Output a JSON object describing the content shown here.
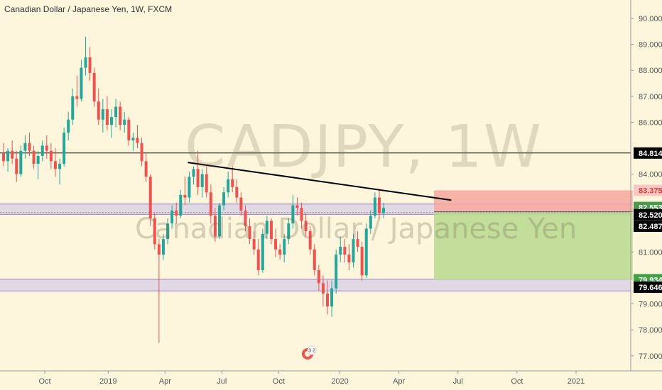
{
  "header": {
    "title": "Canadian Dollar / Japanese Yen, 1W, FXCM"
  },
  "watermark": {
    "symbol": "CADJPY, 1W",
    "name": "Canadian Dollar / Japanese Yen"
  },
  "event_badge": {
    "count": "3 2"
  },
  "colors": {
    "background": "#fdf6dc",
    "up": "#26a69a",
    "down": "#ef5350",
    "zone_fill": "#d6cfe8",
    "zone_line": "#9b7fc4",
    "target": "#b9d98e",
    "stop": "#f7a7a0",
    "trendline": "#000000"
  },
  "chart_data": {
    "type": "candlestick",
    "title": "Canadian Dollar / Japanese Yen, 1W, FXCM",
    "y_axis": {
      "range": [
        76.5,
        90.5
      ],
      "ticks": [
        "90.000",
        "89.000",
        "88.000",
        "87.000",
        "86.000",
        "84.000",
        "81.000",
        "79.000",
        "78.000",
        "77.000"
      ],
      "position": "right"
    },
    "x_axis": {
      "ticks": [
        "Oct",
        "2019",
        "Apr",
        "Jul",
        "Oct",
        "2020",
        "Apr",
        "Jul",
        "Oct",
        "2021"
      ]
    },
    "candles_weekly": [
      [
        84.8,
        85.2,
        84.3,
        84.5
      ],
      [
        84.5,
        85.0,
        84.1,
        84.9
      ],
      [
        84.9,
        85.3,
        84.4,
        84.6
      ],
      [
        84.6,
        84.9,
        83.7,
        84.0
      ],
      [
        84.0,
        85.1,
        83.9,
        84.9
      ],
      [
        84.9,
        85.5,
        84.6,
        85.2
      ],
      [
        85.2,
        85.6,
        84.7,
        84.9
      ],
      [
        84.9,
        85.1,
        84.2,
        84.4
      ],
      [
        84.4,
        84.9,
        83.8,
        84.7
      ],
      [
        84.7,
        85.3,
        84.5,
        85.1
      ],
      [
        85.1,
        85.5,
        84.6,
        84.9
      ],
      [
        84.9,
        85.2,
        84.2,
        84.5
      ],
      [
        84.5,
        85.0,
        83.9,
        84.2
      ],
      [
        84.2,
        84.6,
        83.6,
        84.4
      ],
      [
        84.4,
        85.8,
        84.3,
        85.6
      ],
      [
        85.6,
        86.4,
        85.3,
        86.1
      ],
      [
        86.1,
        87.3,
        85.9,
        87.0
      ],
      [
        87.0,
        87.8,
        86.6,
        86.9
      ],
      [
        86.9,
        88.4,
        86.8,
        88.1
      ],
      [
        88.1,
        89.3,
        87.8,
        88.5
      ],
      [
        88.5,
        88.9,
        87.6,
        87.9
      ],
      [
        87.9,
        88.1,
        86.6,
        86.8
      ],
      [
        86.8,
        87.3,
        85.9,
        86.1
      ],
      [
        86.1,
        86.9,
        85.6,
        86.5
      ],
      [
        86.5,
        87.0,
        85.7,
        85.9
      ],
      [
        85.9,
        86.5,
        85.4,
        86.2
      ],
      [
        86.2,
        86.9,
        85.8,
        86.6
      ],
      [
        86.6,
        86.8,
        85.7,
        85.9
      ],
      [
        85.9,
        86.4,
        85.6,
        86.1
      ],
      [
        86.1,
        86.2,
        85.1,
        85.3
      ],
      [
        85.3,
        85.6,
        84.9,
        85.4
      ],
      [
        85.4,
        85.9,
        85.0,
        85.2
      ],
      [
        85.2,
        85.4,
        84.3,
        84.5
      ],
      [
        84.5,
        84.8,
        83.7,
        83.9
      ],
      [
        83.9,
        84.0,
        82.0,
        82.3
      ],
      [
        82.3,
        82.5,
        81.1,
        81.3
      ],
      [
        81.3,
        81.5,
        77.5,
        80.9
      ],
      [
        80.9,
        81.7,
        80.7,
        81.5
      ],
      [
        81.5,
        82.3,
        81.3,
        82.1
      ],
      [
        82.1,
        82.8,
        81.9,
        82.6
      ],
      [
        82.6,
        82.9,
        82.1,
        82.4
      ],
      [
        82.4,
        83.4,
        82.3,
        83.2
      ],
      [
        83.2,
        83.9,
        82.8,
        83.1
      ],
      [
        83.1,
        84.1,
        82.9,
        83.9
      ],
      [
        83.9,
        84.3,
        83.6,
        84.2
      ],
      [
        84.2,
        84.9,
        83.2,
        83.5
      ],
      [
        83.5,
        84.2,
        83.1,
        84.0
      ],
      [
        84.0,
        84.3,
        83.1,
        83.3
      ],
      [
        83.3,
        83.6,
        82.1,
        82.4
      ],
      [
        82.4,
        82.7,
        81.4,
        81.6
      ],
      [
        81.6,
        82.9,
        81.5,
        82.8
      ],
      [
        82.8,
        83.5,
        82.6,
        83.3
      ],
      [
        83.3,
        84.1,
        83.1,
        83.8
      ],
      [
        83.8,
        84.3,
        83.3,
        83.5
      ],
      [
        83.5,
        83.8,
        82.9,
        83.1
      ],
      [
        83.1,
        83.3,
        82.4,
        82.6
      ],
      [
        82.6,
        82.8,
        81.8,
        82.0
      ],
      [
        82.0,
        82.3,
        81.3,
        81.5
      ],
      [
        81.5,
        81.8,
        80.9,
        81.1
      ],
      [
        81.1,
        81.5,
        80.1,
        80.3
      ],
      [
        80.3,
        81.9,
        80.2,
        81.7
      ],
      [
        81.7,
        82.4,
        81.5,
        82.2
      ],
      [
        82.2,
        82.3,
        81.3,
        81.5
      ],
      [
        81.5,
        81.9,
        80.8,
        81.1
      ],
      [
        81.1,
        81.3,
        80.7,
        80.9
      ],
      [
        80.9,
        81.7,
        80.6,
        81.5
      ],
      [
        81.5,
        82.3,
        81.3,
        82.1
      ],
      [
        82.1,
        83.2,
        81.9,
        82.8
      ],
      [
        82.8,
        83.1,
        82.4,
        82.7
      ],
      [
        82.7,
        82.9,
        81.9,
        82.2
      ],
      [
        82.2,
        82.5,
        81.6,
        81.8
      ],
      [
        81.8,
        82.0,
        80.9,
        81.1
      ],
      [
        81.1,
        81.3,
        80.1,
        80.3
      ],
      [
        80.3,
        80.5,
        79.5,
        79.8
      ],
      [
        79.8,
        80.1,
        78.9,
        79.4
      ],
      [
        79.4,
        79.9,
        78.6,
        78.9
      ],
      [
        78.9,
        79.9,
        78.5,
        79.6
      ],
      [
        79.6,
        81.1,
        79.4,
        80.9
      ],
      [
        80.9,
        81.6,
        80.6,
        81.2
      ],
      [
        81.2,
        81.5,
        80.6,
        80.9
      ],
      [
        80.9,
        81.3,
        80.3,
        80.6
      ],
      [
        80.6,
        81.7,
        80.4,
        81.5
      ],
      [
        81.5,
        81.8,
        81.0,
        81.2
      ],
      [
        81.2,
        81.4,
        79.9,
        80.1
      ],
      [
        80.1,
        82.1,
        80.0,
        81.9
      ],
      [
        81.9,
        82.6,
        81.7,
        82.4
      ],
      [
        82.4,
        83.3,
        82.3,
        83.1
      ],
      [
        83.1,
        83.4,
        82.3,
        82.5
      ],
      [
        82.5,
        82.9,
        82.3,
        82.7
      ]
    ],
    "horizontal_lines": [
      {
        "price": 84.814,
        "label": "84.814"
      }
    ],
    "zones": [
      {
        "from": 82.45,
        "to": 82.85
      },
      {
        "from": 79.5,
        "to": 79.95
      }
    ],
    "trendline": {
      "from": {
        "week": 43,
        "price": 84.45
      },
      "to": {
        "week": 104,
        "price": 83.0
      }
    },
    "position": {
      "entry": 82.553,
      "stop": 83.375,
      "target": 79.934,
      "start_week": 100,
      "end_week": 146
    },
    "price_labels": [
      {
        "value": "84.814",
        "price": 84.814,
        "bg": "#000000",
        "fg": "#ffffff"
      },
      {
        "value": "83.375",
        "price": 83.375,
        "bg": "#f7c9c4",
        "fg": "#e53935"
      },
      {
        "value": "82.553",
        "price": 82.553,
        "bg": "#4c9a4d",
        "fg": "#ffffff"
      },
      {
        "value": "82.520",
        "price": 82.52,
        "bg": "#000000",
        "fg": "#ffffff"
      },
      {
        "value": "82.487",
        "price": 82.487,
        "bg": "#000000",
        "fg": "#ffffff"
      },
      {
        "value": "79.934",
        "price": 79.934,
        "bg": "#43a047",
        "fg": "#ffffff"
      },
      {
        "value": "79.646",
        "price": 79.646,
        "bg": "#000000",
        "fg": "#ffffff"
      }
    ],
    "grid": false,
    "legend": "none"
  }
}
